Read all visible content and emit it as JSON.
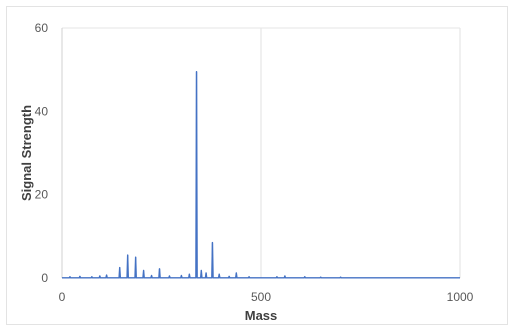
{
  "chart_data": {
    "type": "line",
    "title": "",
    "xlabel": "Mass",
    "ylabel": "Signal Strength",
    "xlim": [
      0,
      1000
    ],
    "ylim": [
      0,
      60
    ],
    "x_ticks": [
      0,
      500,
      1000
    ],
    "y_ticks": [
      0,
      20,
      40,
      60
    ],
    "grid": true,
    "legend": "none",
    "series": [
      {
        "color": "#4472c4",
        "peaks": [
          {
            "x": 20,
            "y": 0.3
          },
          {
            "x": 45,
            "y": 0.4
          },
          {
            "x": 75,
            "y": 0.3
          },
          {
            "x": 95,
            "y": 0.5
          },
          {
            "x": 112,
            "y": 0.7
          },
          {
            "x": 145,
            "y": 2.5
          },
          {
            "x": 165,
            "y": 5.5
          },
          {
            "x": 185,
            "y": 5.0
          },
          {
            "x": 205,
            "y": 1.8
          },
          {
            "x": 225,
            "y": 0.6
          },
          {
            "x": 245,
            "y": 2.2
          },
          {
            "x": 270,
            "y": 0.5
          },
          {
            "x": 300,
            "y": 0.6
          },
          {
            "x": 320,
            "y": 0.9
          },
          {
            "x": 338,
            "y": 49.5
          },
          {
            "x": 350,
            "y": 1.8
          },
          {
            "x": 362,
            "y": 1.2
          },
          {
            "x": 378,
            "y": 8.5
          },
          {
            "x": 395,
            "y": 0.9
          },
          {
            "x": 420,
            "y": 0.4
          },
          {
            "x": 438,
            "y": 1.2
          },
          {
            "x": 470,
            "y": 0.3
          },
          {
            "x": 540,
            "y": 0.3
          },
          {
            "x": 560,
            "y": 0.5
          },
          {
            "x": 610,
            "y": 0.3
          },
          {
            "x": 650,
            "y": 0.2
          },
          {
            "x": 700,
            "y": 0.2
          }
        ]
      }
    ]
  }
}
